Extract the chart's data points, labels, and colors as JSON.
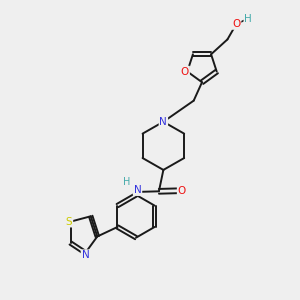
{
  "background_color": "#efefef",
  "bond_color": "#1a1a1a",
  "atom_colors": {
    "O": "#ee1111",
    "N": "#3333dd",
    "S": "#cccc00",
    "H": "#44aaaa",
    "C": "#1a1a1a"
  },
  "figsize": [
    3.0,
    3.0
  ],
  "dpi": 100
}
